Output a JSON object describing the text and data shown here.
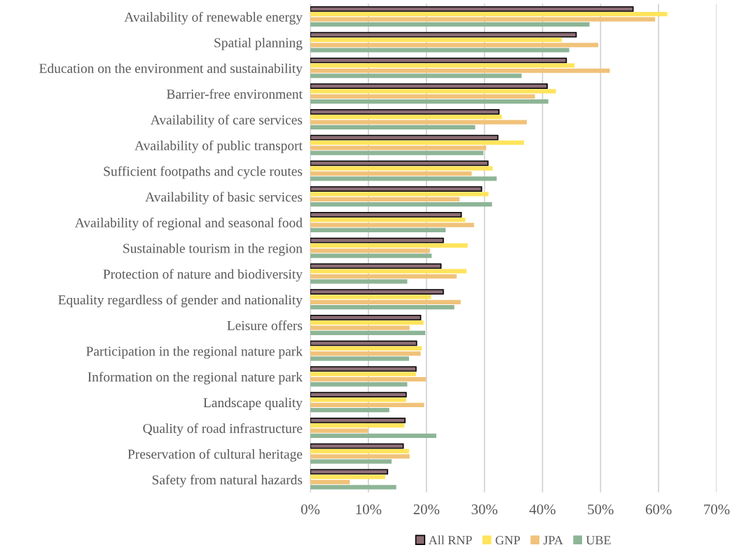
{
  "chart_data": {
    "type": "bar",
    "orientation": "horizontal",
    "categories": [
      "Availability of renewable energy",
      "Spatial planning",
      "Education on the environment and sustainability",
      "Barrier-free environment",
      "Availability of care services",
      "Availability of public transport",
      "Sufficient footpaths and cycle routes",
      "Availability of basic services",
      "Availability of regional and seasonal food",
      "Sustainable tourism in the region",
      "Protection of nature and biodiversity",
      "Equality regardless of gender and nationality",
      "Leisure offers",
      "Participation in the regional nature park",
      "Information on the regional nature park",
      "Landscape quality",
      "Quality of road infrastructure",
      "Preservation of cultural heritage",
      "Safety from natural hazards"
    ],
    "series": [
      {
        "name": "All RNP",
        "color": "#8c6d75",
        "values": [
          55.6,
          45.8,
          44.1,
          40.8,
          32.5,
          32.3,
          30.6,
          29.5,
          26.0,
          22.9,
          22.5,
          22.9,
          19.0,
          18.3,
          18.2,
          16.5,
          16.3,
          16.0,
          13.3
        ]
      },
      {
        "name": "GNP",
        "color": "#ffe45c",
        "values": [
          61.5,
          43.3,
          45.5,
          42.3,
          33.0,
          36.8,
          31.4,
          30.7,
          26.7,
          27.1,
          26.9,
          20.8,
          19.5,
          19.2,
          18.2,
          16.5,
          16.2,
          17.0,
          12.9
        ]
      },
      {
        "name": "JPA",
        "color": "#f0c27a",
        "values": [
          59.4,
          49.6,
          51.6,
          38.7,
          37.3,
          30.3,
          27.8,
          25.7,
          28.2,
          20.6,
          25.2,
          25.9,
          17.1,
          19.0,
          19.9,
          19.6,
          9.9,
          17.1,
          6.8
        ]
      },
      {
        "name": "UBE",
        "color": "#8db596",
        "values": [
          48.1,
          44.6,
          36.4,
          41.0,
          28.4,
          29.8,
          32.1,
          31.3,
          23.3,
          20.9,
          16.7,
          24.8,
          19.8,
          17.0,
          16.7,
          13.6,
          21.7,
          14.0,
          14.8
        ]
      }
    ],
    "xlim": [
      0,
      70
    ],
    "xticks": [
      {
        "value": 0,
        "label": "0%"
      },
      {
        "value": 10,
        "label": "10%"
      },
      {
        "value": 20,
        "label": "20%"
      },
      {
        "value": 30,
        "label": "30%"
      },
      {
        "value": 40,
        "label": "40%"
      },
      {
        "value": 50,
        "label": "50%"
      },
      {
        "value": 60,
        "label": "60%"
      },
      {
        "value": 70,
        "label": "70%"
      }
    ],
    "grid": "x",
    "legend": "bottom"
  }
}
